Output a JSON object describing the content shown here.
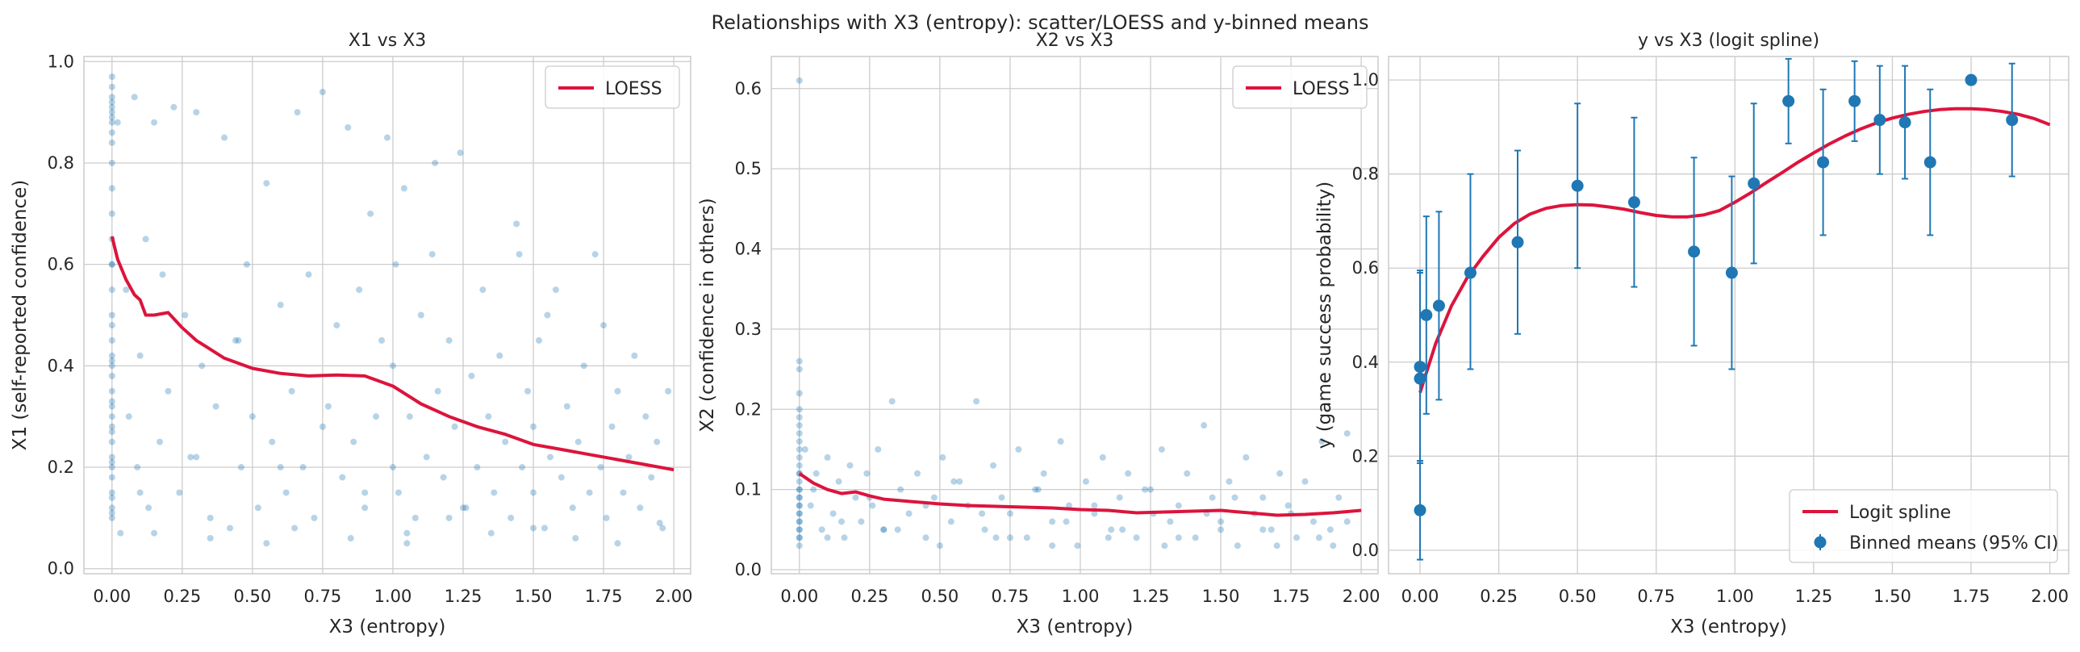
{
  "figure": {
    "suptitle": "Relationships with X3 (entropy): scatter/LOESS and y-binned means",
    "colors": {
      "scatter": "#1f77b4",
      "curve": "#dc143c",
      "grid": "#cccccc",
      "spine": "#cccccc",
      "background": "#ffffff"
    }
  },
  "chart_data": [
    {
      "type": "scatter",
      "title": "X1 vs X3",
      "xlabel": "X3 (entropy)",
      "ylabel": "X1 (self-reported confidence)",
      "xlim": [
        -0.1,
        2.06
      ],
      "ylim": [
        -0.01,
        1.01
      ],
      "xticks": [
        0.0,
        0.25,
        0.5,
        0.75,
        1.0,
        1.25,
        1.5,
        1.75,
        2.0
      ],
      "xtick_labels": [
        "0.00",
        "0.25",
        "0.50",
        "0.75",
        "1.00",
        "1.25",
        "1.50",
        "1.75",
        "2.00"
      ],
      "yticks": [
        0.0,
        0.2,
        0.4,
        0.6,
        0.8,
        1.0
      ],
      "ytick_labels": [
        "0.0",
        "0.2",
        "0.4",
        "0.6",
        "0.8",
        "1.0"
      ],
      "grid": true,
      "legend": {
        "location": "upper right",
        "entries": [
          "LOESS"
        ]
      },
      "series": [
        {
          "name": "LOESS",
          "kind": "line",
          "x": [
            0.0,
            0.02,
            0.05,
            0.08,
            0.1,
            0.12,
            0.15,
            0.2,
            0.25,
            0.3,
            0.4,
            0.5,
            0.6,
            0.7,
            0.8,
            0.9,
            1.0,
            1.1,
            1.2,
            1.3,
            1.4,
            1.5,
            1.6,
            1.7,
            1.8,
            1.9,
            2.0
          ],
          "y": [
            0.655,
            0.61,
            0.57,
            0.54,
            0.53,
            0.5,
            0.5,
            0.505,
            0.475,
            0.45,
            0.415,
            0.395,
            0.385,
            0.38,
            0.382,
            0.38,
            0.36,
            0.325,
            0.3,
            0.28,
            0.265,
            0.245,
            0.235,
            0.225,
            0.215,
            0.205,
            0.195
          ]
        }
      ],
      "scatter_x": [
        0.0,
        0.0,
        0.0,
        0.0,
        0.0,
        0.0,
        0.0,
        0.0,
        0.0,
        0.0,
        0.0,
        0.0,
        0.0,
        0.0,
        0.0,
        0.0,
        0.0,
        0.0,
        0.0,
        0.0,
        0.0,
        0.0,
        0.0,
        0.0,
        0.0,
        0.0,
        0.0,
        0.0,
        0.0,
        0.0,
        0.0,
        0.0,
        0.0,
        0.0,
        0.0,
        0.0,
        0.0,
        0.0,
        0.0,
        0.0,
        0.02,
        0.03,
        0.05,
        0.06,
        0.08,
        0.09,
        0.1,
        0.12,
        0.13,
        0.15,
        0.17,
        0.18,
        0.2,
        0.22,
        0.24,
        0.26,
        0.28,
        0.3,
        0.32,
        0.35,
        0.37,
        0.4,
        0.42,
        0.44,
        0.46,
        0.48,
        0.5,
        0.52,
        0.55,
        0.57,
        0.6,
        0.62,
        0.64,
        0.66,
        0.68,
        0.7,
        0.72,
        0.75,
        0.77,
        0.8,
        0.82,
        0.84,
        0.86,
        0.88,
        0.9,
        0.92,
        0.94,
        0.96,
        0.98,
        1.0,
        1.0,
        1.01,
        1.02,
        1.04,
        1.06,
        1.08,
        1.1,
        1.12,
        1.14,
        1.16,
        1.18,
        1.2,
        1.22,
        1.24,
        1.26,
        1.28,
        1.3,
        1.32,
        1.34,
        1.36,
        1.38,
        1.4,
        1.42,
        1.44,
        1.46,
        1.48,
        1.5,
        1.5,
        1.52,
        1.54,
        1.56,
        1.58,
        1.6,
        1.62,
        1.64,
        1.66,
        1.68,
        1.7,
        1.72,
        1.74,
        1.76,
        1.78,
        1.8,
        1.82,
        1.84,
        1.86,
        1.88,
        1.9,
        1.92,
        1.94,
        1.96,
        1.98,
        0.1,
        0.3,
        0.45,
        0.6,
        0.75,
        0.9,
        1.05,
        1.2,
        1.35,
        1.5,
        1.65,
        1.8,
        1.95,
        0.15,
        0.35,
        0.55,
        0.65,
        0.85,
        1.05,
        1.15,
        1.25,
        1.45,
        1.55,
        1.75
      ],
      "scatter_y": [
        0.95,
        0.93,
        0.91,
        0.9,
        0.88,
        0.86,
        0.84,
        0.8,
        0.75,
        0.7,
        0.65,
        0.6,
        0.55,
        0.5,
        0.48,
        0.45,
        0.42,
        0.4,
        0.38,
        0.35,
        0.32,
        0.3,
        0.28,
        0.25,
        0.22,
        0.2,
        0.18,
        0.15,
        0.12,
        0.1,
        0.97,
        0.92,
        0.89,
        0.6,
        0.41,
        0.33,
        0.27,
        0.21,
        0.14,
        0.11,
        0.88,
        0.07,
        0.55,
        0.3,
        0.93,
        0.2,
        0.42,
        0.65,
        0.12,
        0.88,
        0.25,
        0.58,
        0.35,
        0.91,
        0.15,
        0.5,
        0.22,
        0.9,
        0.4,
        0.1,
        0.32,
        0.85,
        0.08,
        0.45,
        0.2,
        0.6,
        0.3,
        0.12,
        0.76,
        0.25,
        0.52,
        0.15,
        0.35,
        0.9,
        0.2,
        0.58,
        0.1,
        0.94,
        0.32,
        0.48,
        0.18,
        0.87,
        0.25,
        0.55,
        0.12,
        0.7,
        0.3,
        0.45,
        0.85,
        0.2,
        0.4,
        0.6,
        0.15,
        0.75,
        0.3,
        0.1,
        0.5,
        0.22,
        0.62,
        0.35,
        0.18,
        0.45,
        0.28,
        0.82,
        0.12,
        0.38,
        0.2,
        0.55,
        0.3,
        0.15,
        0.42,
        0.25,
        0.1,
        0.68,
        0.2,
        0.35,
        0.15,
        0.28,
        0.45,
        0.08,
        0.22,
        0.55,
        0.18,
        0.32,
        0.12,
        0.25,
        0.4,
        0.15,
        0.62,
        0.2,
        0.1,
        0.28,
        0.35,
        0.15,
        0.22,
        0.42,
        0.12,
        0.3,
        0.18,
        0.25,
        0.08,
        0.35,
        0.15,
        0.22,
        0.45,
        0.2,
        0.28,
        0.15,
        0.05,
        0.1,
        0.07,
        0.08,
        0.06,
        0.05,
        0.09,
        0.07,
        0.06,
        0.05,
        0.08,
        0.06,
        0.07,
        0.8,
        0.12,
        0.62,
        0.5,
        0.48,
        0.9,
        0.4,
        0.72,
        0.65,
        0.75,
        0.5
      ]
    },
    {
      "type": "scatter",
      "title": "X2 vs X3",
      "xlabel": "X3 (entropy)",
      "ylabel": "X2 (confidence in others)",
      "xlim": [
        -0.1,
        2.06
      ],
      "ylim": [
        -0.005,
        0.64
      ],
      "xticks": [
        0.0,
        0.25,
        0.5,
        0.75,
        1.0,
        1.25,
        1.5,
        1.75,
        2.0
      ],
      "xtick_labels": [
        "0.00",
        "0.25",
        "0.50",
        "0.75",
        "1.00",
        "1.25",
        "1.50",
        "1.75",
        "2.00"
      ],
      "yticks": [
        0.0,
        0.1,
        0.2,
        0.3,
        0.4,
        0.5,
        0.6
      ],
      "ytick_labels": [
        "0.0",
        "0.1",
        "0.2",
        "0.3",
        "0.4",
        "0.5",
        "0.6"
      ],
      "grid": true,
      "legend": {
        "location": "upper right",
        "entries": [
          "LOESS"
        ]
      },
      "series": [
        {
          "name": "LOESS",
          "kind": "line",
          "x": [
            0.0,
            0.05,
            0.1,
            0.15,
            0.2,
            0.25,
            0.3,
            0.4,
            0.5,
            0.6,
            0.7,
            0.8,
            0.9,
            1.0,
            1.1,
            1.2,
            1.3,
            1.4,
            1.5,
            1.6,
            1.7,
            1.8,
            1.9,
            2.0
          ],
          "y": [
            0.12,
            0.108,
            0.1,
            0.095,
            0.097,
            0.092,
            0.088,
            0.085,
            0.082,
            0.08,
            0.079,
            0.078,
            0.077,
            0.075,
            0.074,
            0.071,
            0.072,
            0.073,
            0.074,
            0.071,
            0.068,
            0.069,
            0.071,
            0.074
          ]
        }
      ],
      "scatter_x": [
        0.0,
        0.0,
        0.0,
        0.0,
        0.0,
        0.0,
        0.0,
        0.0,
        0.0,
        0.0,
        0.0,
        0.0,
        0.0,
        0.0,
        0.0,
        0.0,
        0.0,
        0.0,
        0.0,
        0.0,
        0.0,
        0.0,
        0.0,
        0.0,
        0.0,
        0.0,
        0.0,
        0.0,
        0.0,
        0.0,
        0.02,
        0.04,
        0.06,
        0.08,
        0.1,
        0.12,
        0.14,
        0.16,
        0.18,
        0.2,
        0.22,
        0.24,
        0.26,
        0.28,
        0.3,
        0.33,
        0.36,
        0.39,
        0.42,
        0.45,
        0.48,
        0.51,
        0.54,
        0.57,
        0.6,
        0.63,
        0.66,
        0.69,
        0.72,
        0.75,
        0.78,
        0.81,
        0.84,
        0.87,
        0.9,
        0.93,
        0.96,
        0.99,
        1.02,
        1.05,
        1.08,
        1.11,
        1.14,
        1.17,
        1.2,
        1.23,
        1.26,
        1.29,
        1.32,
        1.35,
        1.38,
        1.41,
        1.44,
        1.47,
        1.5,
        1.53,
        1.56,
        1.59,
        1.62,
        1.65,
        1.68,
        1.71,
        1.74,
        1.77,
        1.8,
        1.83,
        1.86,
        1.89,
        1.92,
        1.95,
        0.05,
        0.15,
        0.25,
        0.35,
        0.45,
        0.55,
        0.65,
        0.75,
        0.85,
        0.95,
        1.05,
        1.15,
        1.25,
        1.35,
        1.45,
        1.55,
        1.65,
        1.75,
        1.85,
        1.95,
        0.1,
        0.3,
        0.5,
        0.7,
        0.9,
        1.1,
        1.3,
        1.5,
        1.7,
        1.9
      ],
      "scatter_y": [
        0.61,
        0.26,
        0.25,
        0.2,
        0.19,
        0.18,
        0.17,
        0.16,
        0.15,
        0.14,
        0.13,
        0.12,
        0.12,
        0.11,
        0.1,
        0.1,
        0.09,
        0.09,
        0.08,
        0.08,
        0.07,
        0.07,
        0.06,
        0.06,
        0.05,
        0.05,
        0.04,
        0.04,
        0.03,
        0.22,
        0.15,
        0.08,
        0.12,
        0.05,
        0.14,
        0.07,
        0.11,
        0.04,
        0.13,
        0.09,
        0.06,
        0.12,
        0.08,
        0.15,
        0.05,
        0.21,
        0.1,
        0.07,
        0.12,
        0.04,
        0.09,
        0.14,
        0.06,
        0.11,
        0.08,
        0.21,
        0.05,
        0.13,
        0.09,
        0.07,
        0.15,
        0.04,
        0.1,
        0.12,
        0.06,
        0.16,
        0.08,
        0.03,
        0.11,
        0.07,
        0.14,
        0.05,
        0.09,
        0.12,
        0.04,
        0.1,
        0.07,
        0.15,
        0.06,
        0.08,
        0.12,
        0.04,
        0.18,
        0.09,
        0.06,
        0.11,
        0.03,
        0.14,
        0.07,
        0.09,
        0.05,
        0.12,
        0.08,
        0.04,
        0.11,
        0.06,
        0.16,
        0.05,
        0.09,
        0.17,
        0.1,
        0.06,
        0.09,
        0.05,
        0.08,
        0.11,
        0.07,
        0.04,
        0.1,
        0.06,
        0.08,
        0.05,
        0.1,
        0.04,
        0.07,
        0.09,
        0.05,
        0.07,
        0.04,
        0.06,
        0.04,
        0.05,
        0.03,
        0.04,
        0.03,
        0.04,
        0.03,
        0.05,
        0.03,
        0.03
      ]
    },
    {
      "type": "scatter",
      "title": "y vs X3 (logit spline)",
      "xlabel": "X3 (entropy)",
      "ylabel": "y (game success probability)",
      "xlim": [
        -0.1,
        2.06
      ],
      "ylim": [
        -0.05,
        1.05
      ],
      "xticks": [
        0.0,
        0.25,
        0.5,
        0.75,
        1.0,
        1.25,
        1.5,
        1.75,
        2.0
      ],
      "xtick_labels": [
        "0.00",
        "0.25",
        "0.50",
        "0.75",
        "1.00",
        "1.25",
        "1.50",
        "1.75",
        "2.00"
      ],
      "yticks": [
        0.0,
        0.2,
        0.4,
        0.6,
        0.8,
        1.0
      ],
      "ytick_labels": [
        "0.0",
        "0.2",
        "0.4",
        "0.6",
        "0.8",
        "1.0"
      ],
      "grid": true,
      "legend": {
        "location": "lower right",
        "entries": [
          "Logit spline",
          "Binned means (95% CI)"
        ]
      },
      "series": [
        {
          "name": "Logit spline",
          "kind": "line",
          "x": [
            0.0,
            0.05,
            0.1,
            0.15,
            0.2,
            0.25,
            0.3,
            0.35,
            0.4,
            0.45,
            0.5,
            0.55,
            0.6,
            0.65,
            0.7,
            0.75,
            0.8,
            0.85,
            0.9,
            0.95,
            1.0,
            1.05,
            1.1,
            1.15,
            1.2,
            1.25,
            1.3,
            1.35,
            1.4,
            1.45,
            1.5,
            1.55,
            1.6,
            1.65,
            1.7,
            1.75,
            1.8,
            1.85,
            1.9,
            1.95,
            2.0
          ],
          "y": [
            0.335,
            0.44,
            0.52,
            0.58,
            0.625,
            0.665,
            0.695,
            0.715,
            0.727,
            0.733,
            0.735,
            0.734,
            0.73,
            0.725,
            0.718,
            0.712,
            0.709,
            0.709,
            0.713,
            0.722,
            0.74,
            0.76,
            0.782,
            0.803,
            0.825,
            0.845,
            0.864,
            0.881,
            0.896,
            0.909,
            0.919,
            0.927,
            0.933,
            0.937,
            0.939,
            0.939,
            0.937,
            0.933,
            0.927,
            0.918,
            0.905
          ]
        },
        {
          "name": "Binned means (95% CI)",
          "kind": "errorbar",
          "x": [
            0.0,
            0.0,
            0.0,
            0.02,
            0.06,
            0.16,
            0.31,
            0.5,
            0.68,
            0.87,
            0.99,
            1.06,
            1.17,
            1.28,
            1.38,
            1.46,
            1.54,
            1.62,
            1.75,
            1.88
          ],
          "y": [
            0.085,
            0.365,
            0.39,
            0.5,
            0.52,
            0.59,
            0.655,
            0.775,
            0.74,
            0.635,
            0.59,
            0.78,
            0.955,
            0.825,
            0.955,
            0.915,
            0.91,
            0.825,
            1.0,
            0.915
          ],
          "err_low": [
            0.105,
            0.175,
            0.205,
            0.21,
            0.2,
            0.205,
            0.195,
            0.175,
            0.18,
            0.2,
            0.205,
            0.17,
            0.09,
            0.155,
            0.085,
            0.115,
            0.12,
            0.155,
            0.0,
            0.12
          ],
          "err_high": [
            0.105,
            0.225,
            0.205,
            0.21,
            0.2,
            0.21,
            0.195,
            0.175,
            0.18,
            0.2,
            0.205,
            0.17,
            0.09,
            0.155,
            0.085,
            0.115,
            0.12,
            0.155,
            0.0,
            0.12
          ]
        }
      ]
    }
  ]
}
